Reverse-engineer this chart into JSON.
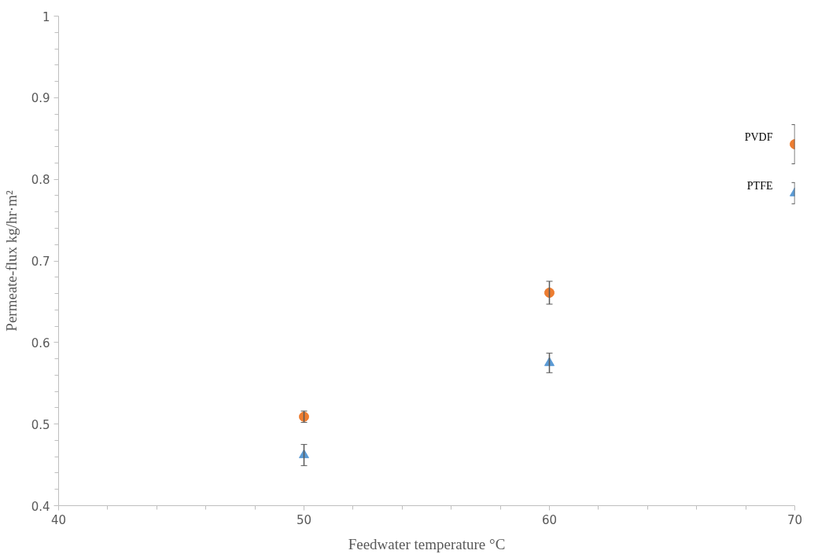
{
  "chart_data": {
    "type": "scatter",
    "xlabel": "Feedwater temperature °C",
    "ylabel": "Permeate-flux kg/hr·m²",
    "x": [
      50,
      60,
      70
    ],
    "series": [
      {
        "name": "PVDF",
        "color": "#ed7d31",
        "marker": "circle",
        "values": [
          0.509,
          0.661,
          0.843
        ],
        "errors": [
          0.007,
          0.014,
          0.024
        ]
      },
      {
        "name": "PTFE",
        "color": "#5b9bd5",
        "marker": "triangle",
        "values": [
          0.462,
          0.575,
          0.783
        ],
        "errors": [
          0.013,
          0.012,
          0.013
        ]
      }
    ],
    "xlim": [
      40,
      70
    ],
    "ylim": [
      0.4,
      1
    ],
    "xticks": [
      40,
      {
        "value": 42,
        "label": null
      },
      {
        "value": 44,
        "label": null
      },
      {
        "value": 46,
        "label": null
      },
      {
        "value": 48,
        "label": null
      },
      50,
      {
        "value": 52,
        "label": null
      },
      {
        "value": 54,
        "label": null
      },
      {
        "value": 56,
        "label": null
      },
      {
        "value": 58,
        "label": null
      },
      60,
      {
        "value": 62,
        "label": null
      },
      {
        "value": 64,
        "label": null
      },
      {
        "value": 66,
        "label": null
      },
      {
        "value": 68,
        "label": null
      },
      70
    ],
    "yticks": [
      0.4,
      {
        "value": 0.42,
        "label": null
      },
      {
        "value": 0.44,
        "label": null
      },
      {
        "value": 0.46,
        "label": null
      },
      {
        "value": 0.48,
        "label": null
      },
      0.5,
      {
        "value": 0.52,
        "label": null
      },
      {
        "value": 0.54,
        "label": null
      },
      {
        "value": 0.56,
        "label": null
      },
      {
        "value": 0.58,
        "label": null
      },
      0.6,
      {
        "value": 0.62,
        "label": null
      },
      {
        "value": 0.64,
        "label": null
      },
      {
        "value": 0.66,
        "label": null
      },
      {
        "value": 0.68,
        "label": null
      },
      0.7,
      {
        "value": 0.72,
        "label": null
      },
      {
        "value": 0.74,
        "label": null
      },
      {
        "value": 0.76,
        "label": null
      },
      {
        "value": 0.78,
        "label": null
      },
      0.8,
      {
        "value": 0.82,
        "label": null
      },
      {
        "value": 0.84,
        "label": null
      },
      {
        "value": 0.86,
        "label": null
      },
      {
        "value": 0.88,
        "label": null
      },
      0.9,
      {
        "value": 0.92,
        "label": null
      },
      {
        "value": 0.94,
        "label": null
      },
      {
        "value": 0.96,
        "label": null
      },
      {
        "value": 0.98,
        "label": null
      },
      1
    ],
    "grid": false
  }
}
